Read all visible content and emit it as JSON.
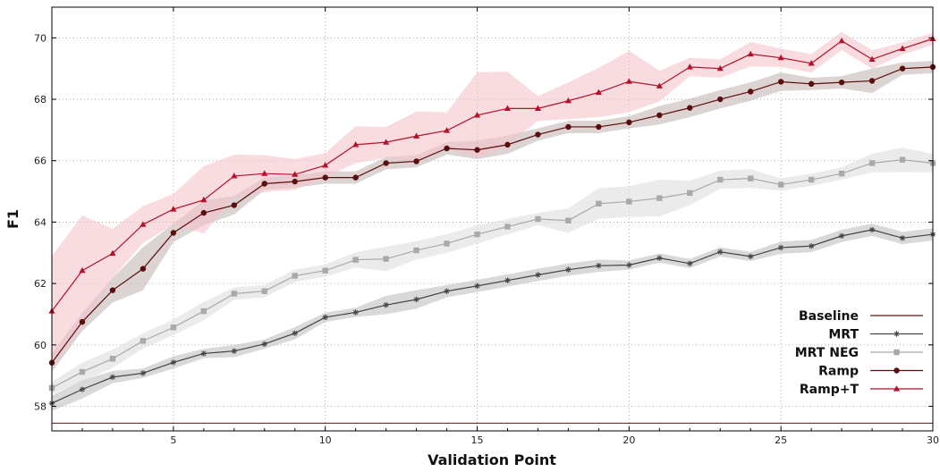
{
  "chart_data": {
    "type": "line",
    "title": "",
    "xlabel": "Validation Point",
    "ylabel": "F1",
    "xlim": [
      1,
      30
    ],
    "ylim": [
      57.2,
      71.0
    ],
    "x_ticks": [
      5,
      10,
      15,
      20,
      25,
      30
    ],
    "y_ticks": [
      58,
      60,
      62,
      64,
      66,
      68,
      70
    ],
    "grid": true,
    "legend_position": "bottom-right",
    "x": [
      1,
      2,
      3,
      4,
      5,
      6,
      7,
      8,
      9,
      10,
      11,
      12,
      13,
      14,
      15,
      16,
      17,
      18,
      19,
      20,
      21,
      22,
      23,
      24,
      25,
      26,
      27,
      28,
      29,
      30
    ],
    "series": [
      {
        "name": "Baseline",
        "color": "#5a1a1a",
        "marker": "none",
        "constant": 57.45
      },
      {
        "name": "MRT",
        "color": "#444444",
        "band_color": "#bfbfbf",
        "marker": "star",
        "values": [
          58.1,
          58.55,
          58.95,
          59.08,
          59.43,
          59.72,
          59.8,
          60.03,
          60.38,
          60.9,
          61.06,
          61.3,
          61.48,
          61.75,
          61.92,
          62.1,
          62.28,
          62.45,
          62.58,
          62.6,
          62.83,
          62.65,
          63.03,
          62.88,
          63.17,
          63.22,
          63.55,
          63.75,
          63.48,
          63.6
        ],
        "band": [
          0.25,
          0.3,
          0.2,
          0.15,
          0.2,
          0.15,
          0.2,
          0.15,
          0.2,
          0.15,
          0.15,
          0.3,
          0.3,
          0.2,
          0.2,
          0.2,
          0.2,
          0.2,
          0.2,
          0.15,
          0.15,
          0.15,
          0.15,
          0.15,
          0.2,
          0.2,
          0.2,
          0.2,
          0.2,
          0.2
        ]
      },
      {
        "name": "MRT NEG",
        "color": "#a9a9a9",
        "band_color": "#dddddd",
        "marker": "square",
        "values": [
          58.6,
          59.12,
          59.55,
          60.13,
          60.57,
          61.1,
          61.67,
          61.75,
          62.25,
          62.42,
          62.77,
          62.8,
          63.08,
          63.3,
          63.6,
          63.85,
          64.1,
          64.05,
          64.6,
          64.67,
          64.78,
          64.95,
          65.38,
          65.42,
          65.22,
          65.38,
          65.58,
          65.92,
          66.03,
          65.92
        ],
        "band": [
          0.2,
          0.3,
          0.3,
          0.25,
          0.25,
          0.3,
          0.2,
          0.2,
          0.2,
          0.2,
          0.25,
          0.4,
          0.3,
          0.3,
          0.3,
          0.25,
          0.2,
          0.4,
          0.5,
          0.5,
          0.6,
          0.4,
          0.3,
          0.3,
          0.2,
          0.2,
          0.2,
          0.3,
          0.4,
          0.3
        ]
      },
      {
        "name": "Ramp",
        "color": "#5c0d0d",
        "band_color": "#c4b5b5",
        "marker": "circle",
        "values": [
          59.42,
          60.75,
          61.78,
          62.48,
          63.65,
          64.3,
          64.55,
          65.25,
          65.32,
          65.45,
          65.45,
          65.92,
          65.98,
          66.4,
          66.35,
          66.52,
          66.85,
          67.1,
          67.1,
          67.25,
          67.48,
          67.72,
          68.0,
          68.25,
          68.57,
          68.5,
          68.55,
          68.6,
          69.0,
          69.05
        ],
        "band": [
          0.3,
          0.3,
          0.4,
          0.7,
          0.3,
          0.4,
          0.3,
          0.2,
          0.2,
          0.2,
          0.2,
          0.2,
          0.2,
          0.2,
          0.3,
          0.3,
          0.2,
          0.2,
          0.2,
          0.2,
          0.3,
          0.3,
          0.3,
          0.3,
          0.3,
          0.2,
          0.2,
          0.4,
          0.2,
          0.2
        ]
      },
      {
        "name": "Ramp+T",
        "color": "#b5122a",
        "band_color": "#f3c5cb",
        "marker": "triangle",
        "values": [
          61.1,
          62.42,
          62.98,
          63.92,
          64.42,
          64.72,
          65.5,
          65.58,
          65.55,
          65.85,
          66.52,
          66.6,
          66.8,
          66.98,
          67.48,
          67.7,
          67.7,
          67.95,
          68.22,
          68.58,
          68.43,
          69.05,
          69.0,
          69.47,
          69.35,
          69.17,
          69.9,
          69.3,
          69.65,
          69.97
        ],
        "band": [
          1.8,
          1.8,
          0.8,
          0.6,
          0.5,
          1.1,
          0.7,
          0.6,
          0.5,
          0.4,
          0.6,
          0.5,
          0.8,
          0.6,
          1.4,
          1.2,
          0.4,
          0.6,
          0.8,
          1.0,
          0.5,
          0.3,
          0.3,
          0.4,
          0.3,
          0.3,
          0.3,
          0.3,
          0.2,
          0.2
        ]
      }
    ]
  }
}
